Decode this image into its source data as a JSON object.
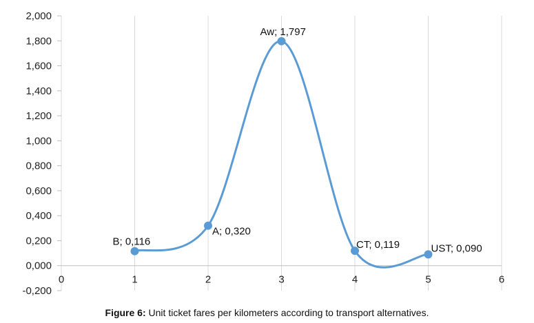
{
  "chart_data": {
    "type": "line",
    "x": [
      1,
      2,
      3,
      4,
      5
    ],
    "series": [
      {
        "values": [
          0.116,
          0.32,
          1.797,
          0.119,
          0.09
        ]
      }
    ],
    "data_labels": [
      "B; 0,116",
      "A; 0,320",
      "Aw; 1,797",
      "CT; 0,119",
      "UST; 0,090"
    ],
    "xlim": [
      0,
      6
    ],
    "ylim": [
      -0.2,
      2.0
    ],
    "x_ticks": [
      0,
      1,
      2,
      3,
      4,
      5,
      6
    ],
    "y_ticks": [
      -0.2,
      0.0,
      0.2,
      0.4,
      0.6,
      0.8,
      1.0,
      1.2,
      1.4,
      1.6,
      1.8,
      2.0
    ],
    "x_tick_labels": [
      "0",
      "1",
      "2",
      "3",
      "4",
      "5",
      "6"
    ],
    "y_tick_labels": [
      "-0,200",
      "0,000",
      "0,200",
      "0,400",
      "0,600",
      "0,800",
      "1,000",
      "1,200",
      "1,400",
      "1,600",
      "1,800",
      "2,000"
    ],
    "smooth": true,
    "grid": "vertical",
    "color": "#5b9bd5"
  },
  "caption": {
    "label": "Figure 6:",
    "text": " Unit ticket fares per kilometers according to transport alternatives."
  }
}
